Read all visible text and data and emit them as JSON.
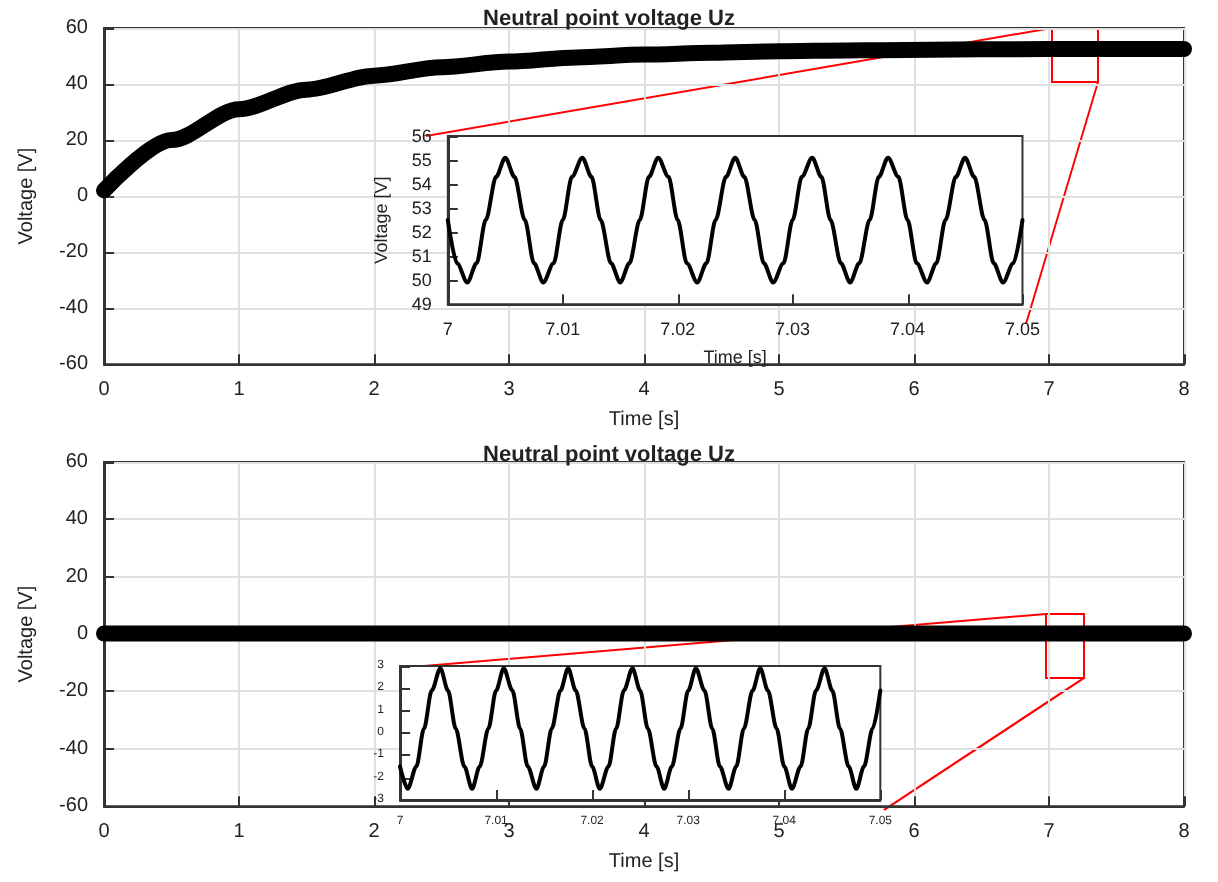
{
  "chart_data": [
    {
      "type": "line",
      "title": "Neutral point voltage Uz",
      "xlabel": "Time [s]",
      "ylabel": "Voltage [V]",
      "x": [
        0,
        0.5,
        1,
        1.5,
        2,
        2.5,
        3,
        3.5,
        4,
        4.5,
        5,
        5.5,
        5.75,
        6.5,
        7,
        7.5,
        8
      ],
      "series": [
        {
          "color": "#000000",
          "values": [
            2,
            20,
            31,
            38,
            43,
            46,
            48,
            49.5,
            50.5,
            51.2,
            51.7,
            52,
            52.1,
            52.4,
            52.5,
            52.5,
            52.5
          ]
        }
      ],
      "xlim": [
        0,
        8
      ],
      "xticks": [
        0,
        1,
        2,
        3,
        4,
        5,
        6,
        7,
        8
      ],
      "ylim": [
        -60,
        60
      ],
      "yticks": [
        -60,
        -40,
        -20,
        0,
        20,
        40,
        60
      ],
      "grid": true
    },
    {
      "type": "line",
      "xlabel": "Time [s]",
      "ylabel": "Voltage [V]",
      "x": [
        7,
        7.0008,
        7.0017,
        7.0025,
        7.0033,
        7.0042,
        7.005,
        7.0058,
        7.0067,
        7.0075,
        7.0083,
        7.0092,
        7.01,
        7.0108,
        7.0117,
        7.0125,
        7.0133,
        7.0142,
        7.015,
        7.0158,
        7.0167,
        7.0175,
        7.0183,
        7.0192,
        7.02,
        7.0208,
        7.0217,
        7.0225,
        7.0233,
        7.0242,
        7.025,
        7.0258,
        7.0267,
        7.0275,
        7.0283,
        7.0292,
        7.03,
        7.0308,
        7.0317,
        7.0325,
        7.0333,
        7.0342,
        7.035,
        7.0358,
        7.0367,
        7.0375,
        7.0383,
        7.0392,
        7.04,
        7.0408,
        7.0417,
        7.0425,
        7.0433,
        7.0442,
        7.045,
        7.0458,
        7.0467,
        7.0475,
        7.0483,
        7.0492,
        7.05
      ],
      "series": [
        {
          "color": "#000000",
          "values": [
            52.5,
            50.7,
            49.9,
            50.7,
            52.5,
            54.3,
            55.1,
            54.3,
            52.5,
            50.7,
            49.9,
            50.7,
            52.5,
            54.3,
            55.1,
            54.3,
            52.5,
            50.7,
            49.9,
            50.7,
            52.5,
            54.3,
            55.1,
            54.3,
            52.5,
            50.7,
            49.9,
            50.7,
            52.5,
            54.3,
            55.1,
            54.3,
            52.5,
            50.7,
            49.9,
            50.7,
            52.5,
            54.3,
            55.1,
            54.3,
            52.5,
            50.7,
            49.9,
            50.7,
            52.5,
            54.3,
            55.1,
            54.3,
            52.5,
            50.7,
            49.9,
            50.7,
            52.5,
            54.3,
            55.1,
            54.3,
            52.5,
            50.7,
            49.9,
            50.7,
            52.5
          ]
        }
      ],
      "xlim": [
        7,
        7.05
      ],
      "xticks": [
        7,
        7.01,
        7.02,
        7.03,
        7.04,
        7.05
      ],
      "ylim": [
        49,
        56
      ],
      "yticks": [
        49,
        50,
        51,
        52,
        53,
        54,
        55,
        56
      ]
    },
    {
      "type": "line",
      "title": "Neutral point voltage Uz",
      "xlabel": "Time [s]",
      "ylabel": "Voltage [V]",
      "x": [
        0,
        0.5,
        1,
        1.5,
        2,
        2.5,
        3,
        3.5,
        4,
        4.5,
        5,
        5.5,
        6,
        6.5,
        7,
        7.5,
        8
      ],
      "series": [
        {
          "color": "#000000",
          "values": [
            0.2,
            0.2,
            0.2,
            0.2,
            0.2,
            0.2,
            0.2,
            0.2,
            0.2,
            0.2,
            0.2,
            0.2,
            0.2,
            0.2,
            0.2,
            0.2,
            0.2
          ]
        }
      ],
      "xlim": [
        0,
        8
      ],
      "xticks": [
        0,
        1,
        2,
        3,
        4,
        5,
        6,
        7,
        8
      ],
      "ylim": [
        -60,
        60
      ],
      "yticks": [
        -60,
        -40,
        -20,
        0,
        20,
        40,
        60
      ],
      "grid": true
    },
    {
      "type": "line",
      "x": [
        7,
        7.0008,
        7.0017,
        7.0025,
        7.0033,
        7.0042,
        7.005,
        7.0058,
        7.0067,
        7.0075,
        7.0083,
        7.0092,
        7.01,
        7.0108,
        7.0117,
        7.0125,
        7.0133,
        7.0142,
        7.015,
        7.0158,
        7.0167,
        7.0175,
        7.0183,
        7.0192,
        7.02,
        7.0208,
        7.0217,
        7.0225,
        7.0233,
        7.0242,
        7.025,
        7.0258,
        7.0267,
        7.0275,
        7.0283,
        7.0292,
        7.03,
        7.0308,
        7.0317,
        7.0325,
        7.0333,
        7.0342,
        7.035,
        7.0358,
        7.0367,
        7.0375,
        7.0383,
        7.0392,
        7.04,
        7.0408,
        7.0417,
        7.0425,
        7.0433,
        7.0442,
        7.045,
        7.0458,
        7.0467,
        7.0475,
        7.0483,
        7.0492,
        7.05
      ],
      "series": [
        {
          "color": "#000000",
          "values": [
            -1.5,
            -2.5,
            -1.5,
            0.2,
            1.9,
            2.9,
            1.9,
            0.2,
            -1.5,
            -2.5,
            -1.5,
            0.2,
            1.9,
            2.9,
            1.9,
            0.2,
            -1.5,
            -2.5,
            -1.5,
            0.2,
            1.9,
            2.9,
            1.9,
            0.2,
            -1.5,
            -2.5,
            -1.5,
            0.2,
            1.9,
            2.9,
            1.9,
            0.2,
            -1.5,
            -2.5,
            -1.5,
            0.2,
            1.9,
            2.9,
            1.9,
            0.2,
            -1.5,
            -2.5,
            -1.5,
            0.2,
            1.9,
            2.9,
            1.9,
            0.2,
            -1.5,
            -2.5,
            -1.5,
            0.2,
            1.9,
            2.9,
            1.9,
            0.2,
            -1.5,
            -2.5,
            -1.5,
            0.2,
            1.9
          ]
        }
      ],
      "xlim": [
        7,
        7.05
      ],
      "xticks": [
        7,
        7.01,
        7.02,
        7.03,
        7.04,
        7.05
      ],
      "ylim": [
        -3,
        3
      ],
      "yticks": [
        -3,
        -2,
        -1,
        0,
        1,
        2,
        3
      ]
    }
  ]
}
